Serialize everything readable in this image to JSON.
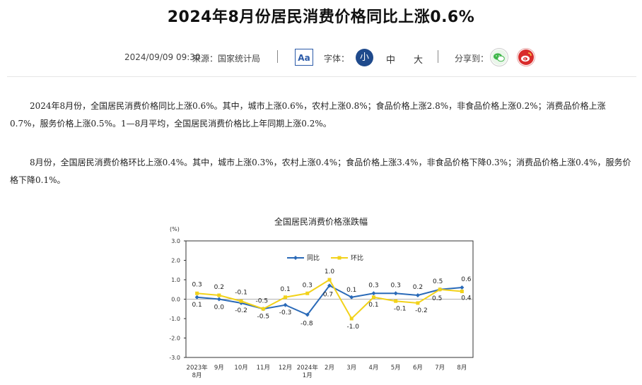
{
  "article": {
    "title": "2024年8月份居民消费价格同比上涨0.6%",
    "date": "2024/09/09 09:30",
    "source": "来源：国家统计局",
    "font_toggle_label": "Aa",
    "font_label": "字体：",
    "font_sizes": [
      "小",
      "中",
      "大"
    ],
    "share_label": "分享到：",
    "share_icons": [
      "wechat-icon",
      "weibo-icon"
    ],
    "paragraphs": [
      "2024年8月份，全国居民消费价格同比上涨0.6%。其中，城市上涨0.6%，农村上涨0.8%；食品价格上涨2.8%，非食品价格上涨0.2%；消费品价格上涨0.7%，服务价格上涨0.5%。1—8月平均，全国居民消费价格比上年同期上涨0.2%。",
      "8月份，全国居民消费价格环比上涨0.4%。其中，城市上涨0.3%，农村上涨0.4%；食品价格上涨3.4%，非食品价格下降0.3%；消费品价格上涨0.4%，服务价格下降0.1%。"
    ]
  },
  "colors": {
    "yoy": "#2a6ab8",
    "mom": "#f2d21a",
    "accent": "#1f4a8c",
    "wechat": "#3fb64a",
    "weibo": "#d92b2b"
  },
  "chart_data": {
    "type": "line",
    "title": "全国居民消费价格涨跌幅",
    "ylabel": "(%)",
    "xlabel": "",
    "ylim": [
      -3.0,
      3.0
    ],
    "yticks": [
      "3.0",
      "2.0",
      "1.0",
      "0.0",
      "-1.0",
      "-2.0",
      "-3.0"
    ],
    "legend_position": "top-center",
    "categories": [
      "2023年\n8月",
      "9月",
      "10月",
      "11月",
      "12月",
      "2024年\n1月",
      "2月",
      "3月",
      "4月",
      "5月",
      "6月",
      "7月",
      "8月"
    ],
    "series": [
      {
        "name": "同比",
        "values": [
          0.1,
          0.0,
          -0.2,
          -0.5,
          -0.3,
          -0.8,
          0.7,
          0.1,
          0.3,
          0.3,
          0.2,
          0.5,
          0.6
        ],
        "labels": [
          "0.1",
          "0.0",
          "-0.2",
          "-0.5",
          "-0.3",
          "-0.8",
          "0.7",
          "0.1",
          "0.3",
          "0.3",
          "0.2",
          "0.5",
          "0.6"
        ]
      },
      {
        "name": "环比",
        "values": [
          0.3,
          0.2,
          -0.1,
          -0.5,
          0.1,
          0.3,
          1.0,
          -1.0,
          0.1,
          -0.1,
          -0.2,
          0.5,
          0.4
        ],
        "labels": [
          "0.3",
          "0.2",
          "-0.1",
          "-0.5",
          "0.1",
          "0.3",
          "1.0",
          "-1.0",
          "0.1",
          "-0.1",
          "-0.2",
          "0.5",
          "0.4"
        ]
      }
    ]
  }
}
